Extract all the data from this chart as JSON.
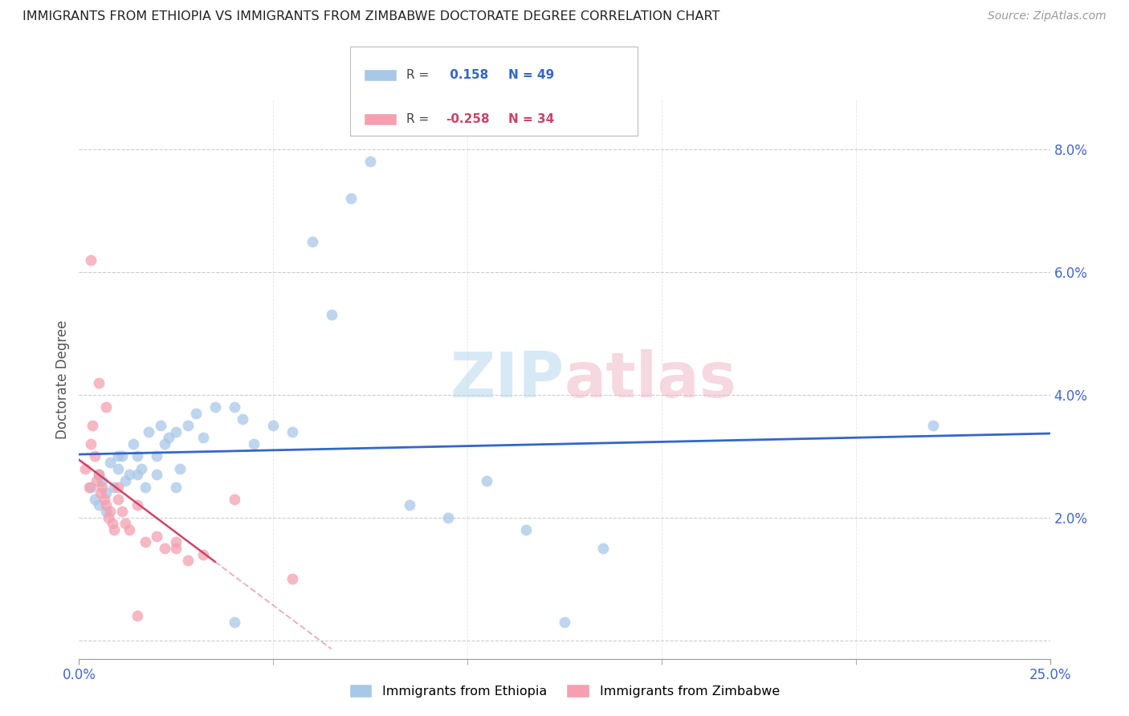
{
  "title": "IMMIGRANTS FROM ETHIOPIA VS IMMIGRANTS FROM ZIMBABWE DOCTORATE DEGREE CORRELATION CHART",
  "source": "Source: ZipAtlas.com",
  "ylabel": "Doctorate Degree",
  "r_ethiopia": 0.158,
  "n_ethiopia": 49,
  "r_zimbabwe": -0.258,
  "n_zimbabwe": 34,
  "color_ethiopia": "#a8c8e8",
  "color_zimbabwe": "#f4a0b0",
  "line_color_ethiopia": "#3366cc",
  "line_color_zimbabwe": "#cc4466",
  "background_color": "#ffffff",
  "grid_color": "#cccccc",
  "axis_label_color": "#4466cc",
  "ytick_labels": [
    "2.0%",
    "4.0%",
    "6.0%",
    "8.0%"
  ],
  "ytick_values": [
    2.0,
    4.0,
    6.0,
    8.0
  ],
  "xlim": [
    0.0,
    25.0
  ],
  "ylim": [
    -0.3,
    8.8
  ],
  "ethiopia_x": [
    0.3,
    0.4,
    0.5,
    0.6,
    0.7,
    0.8,
    0.9,
    1.0,
    1.1,
    1.2,
    1.3,
    1.4,
    1.5,
    1.6,
    1.7,
    1.8,
    2.0,
    2.1,
    2.2,
    2.3,
    2.5,
    2.6,
    2.8,
    3.0,
    3.2,
    3.5,
    4.0,
    4.2,
    4.5,
    5.0,
    5.5,
    6.0,
    6.5,
    7.0,
    7.5,
    8.5,
    9.5,
    10.5,
    11.5,
    12.5,
    13.5,
    0.5,
    0.7,
    1.0,
    1.5,
    2.0,
    2.5,
    22.0,
    4.0
  ],
  "ethiopia_y": [
    2.5,
    2.3,
    2.7,
    2.6,
    2.4,
    2.9,
    2.5,
    2.8,
    3.0,
    2.6,
    2.7,
    3.2,
    3.0,
    2.8,
    2.5,
    3.4,
    3.0,
    3.5,
    3.2,
    3.3,
    3.4,
    2.8,
    3.5,
    3.7,
    3.3,
    3.8,
    3.8,
    3.6,
    3.2,
    3.5,
    3.4,
    6.5,
    5.3,
    7.2,
    7.8,
    2.2,
    2.0,
    2.6,
    1.8,
    0.3,
    1.5,
    2.2,
    2.1,
    3.0,
    2.7,
    2.7,
    2.5,
    3.5,
    0.3
  ],
  "zimbabwe_x": [
    0.15,
    0.25,
    0.3,
    0.35,
    0.4,
    0.45,
    0.5,
    0.55,
    0.6,
    0.65,
    0.7,
    0.75,
    0.8,
    0.85,
    0.9,
    1.0,
    1.1,
    1.2,
    1.3,
    1.5,
    1.7,
    2.0,
    2.2,
    2.5,
    2.8,
    3.2,
    4.0,
    5.5,
    0.3,
    0.5,
    0.7,
    1.0,
    1.5,
    2.5
  ],
  "zimbabwe_y": [
    2.8,
    2.5,
    3.2,
    3.5,
    3.0,
    2.6,
    2.7,
    2.4,
    2.5,
    2.3,
    2.2,
    2.0,
    2.1,
    1.9,
    1.8,
    2.3,
    2.1,
    1.9,
    1.8,
    2.2,
    1.6,
    1.7,
    1.5,
    1.6,
    1.3,
    1.4,
    2.3,
    1.0,
    6.2,
    4.2,
    3.8,
    2.5,
    0.4,
    1.5
  ]
}
